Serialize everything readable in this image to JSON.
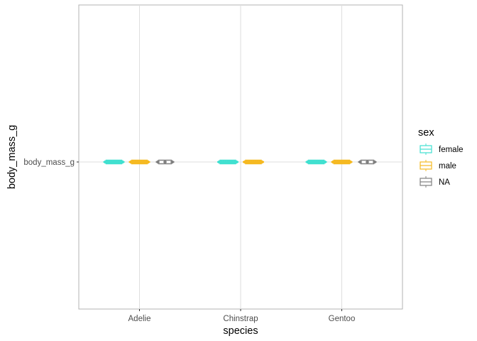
{
  "chart_data": {
    "type": "boxplot",
    "title": "",
    "xlabel": "species",
    "ylabel": "body_mass_g",
    "y_categories": [
      "body_mass_g"
    ],
    "categories": [
      "Adelie",
      "Chinstrap",
      "Gentoo"
    ],
    "grid": true,
    "legend": {
      "title": "sex",
      "placement": "right",
      "entries": [
        {
          "name": "female",
          "color": "#40e0d0"
        },
        {
          "name": "male",
          "color": "#f5b921"
        },
        {
          "name": "NA",
          "color": "#808080"
        }
      ]
    },
    "series": [
      {
        "name": "female",
        "color": "#40e0d0",
        "present": [
          true,
          true,
          true
        ]
      },
      {
        "name": "male",
        "color": "#f5b921",
        "present": [
          true,
          true,
          true
        ]
      },
      {
        "name": "NA",
        "color": "#808080",
        "present": [
          true,
          false,
          true
        ]
      }
    ]
  }
}
